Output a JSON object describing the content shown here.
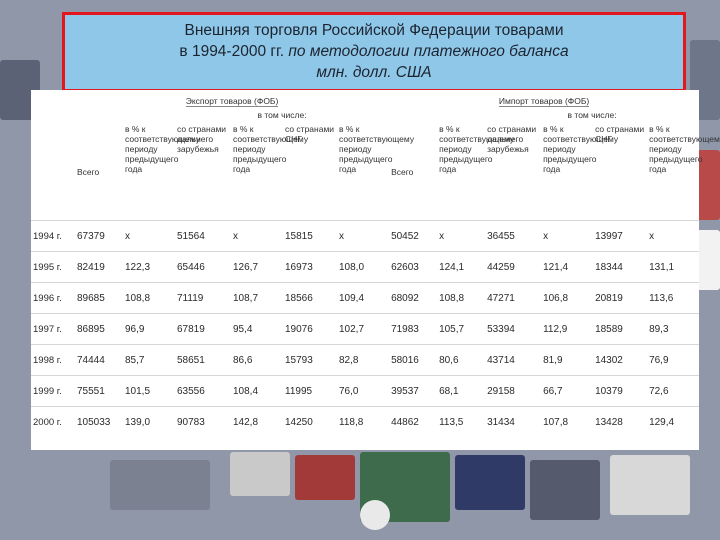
{
  "title": {
    "line1": "Внешняя торговля Российской Федерации товарами",
    "line2_plain": "в 1994-2000 гг. ",
    "line2_italic": "по методологии платежного баланса",
    "line3_italic": "млн. долл. США"
  },
  "table": {
    "export_header": "Экспорт товаров (ФОБ)",
    "import_header": "Импорт товаров (ФОБ)",
    "including_export": "в том числе:",
    "including_import": "в том числе:",
    "col_total": "Всего",
    "col_pct": "в % к соответствующему периоду предыдущего года",
    "col_far": "со странами дальнего зарубежья",
    "col_pct_far": "в % к соответствующему периоду предыдущего года",
    "col_cis": "со странами СНГ",
    "col_pct_cis": "в % к соответствующему периоду предыдущего года",
    "rows": [
      {
        "year": "1994 г.",
        "e_total": "67379",
        "e_pct": "x",
        "e_far": "51564",
        "e_pct_far": "x",
        "e_cis": "15815",
        "e_pct_cis": "x",
        "i_total": "50452",
        "i_pct": "x",
        "i_far": "36455",
        "i_pct_far": "x",
        "i_cis": "13997",
        "i_pct_cis": "x"
      },
      {
        "year": "1995 г.",
        "e_total": "82419",
        "e_pct": "122,3",
        "e_far": "65446",
        "e_pct_far": "126,7",
        "e_cis": "16973",
        "e_pct_cis": "108,0",
        "i_total": "62603",
        "i_pct": "124,1",
        "i_far": "44259",
        "i_pct_far": "121,4",
        "i_cis": "18344",
        "i_pct_cis": "131,1"
      },
      {
        "year": "1996 г.",
        "e_total": "89685",
        "e_pct": "108,8",
        "e_far": "71119",
        "e_pct_far": "108,7",
        "e_cis": "18566",
        "e_pct_cis": "109,4",
        "i_total": "68092",
        "i_pct": "108,8",
        "i_far": "47271",
        "i_pct_far": "106,8",
        "i_cis": "20819",
        "i_pct_cis": "113,6"
      },
      {
        "year": "1997 г.",
        "e_total": "86895",
        "e_pct": "96,9",
        "e_far": "67819",
        "e_pct_far": "95,4",
        "e_cis": "19076",
        "e_pct_cis": "102,7",
        "i_total": "71983",
        "i_pct": "105,7",
        "i_far": "53394",
        "i_pct_far": "112,9",
        "i_cis": "18589",
        "i_pct_cis": "89,3"
      },
      {
        "year": "1998 г.",
        "e_total": "74444",
        "e_pct": "85,7",
        "e_far": "58651",
        "e_pct_far": "86,6",
        "e_cis": "15793",
        "e_pct_cis": "82,8",
        "i_total": "58016",
        "i_pct": "80,6",
        "i_far": "43714",
        "i_pct_far": "81,9",
        "i_cis": "14302",
        "i_pct_cis": "76,9"
      },
      {
        "year": "1999 г.",
        "e_total": "75551",
        "e_pct": "101,5",
        "e_far": "63556",
        "e_pct_far": "108,4",
        "e_cis": "11995",
        "e_pct_cis": "76,0",
        "i_total": "39537",
        "i_pct": "68,1",
        "i_far": "29158",
        "i_pct_far": "66,7",
        "i_cis": "10379",
        "i_pct_cis": "72,6"
      },
      {
        "year": "2000 г.",
        "e_total": "105033",
        "e_pct": "139,0",
        "e_far": "90783",
        "e_pct_far": "142,8",
        "e_cis": "14250",
        "e_pct_cis": "118,8",
        "i_total": "44862",
        "i_pct": "113,5",
        "i_far": "31434",
        "i_pct_far": "107,8",
        "i_cis": "13428",
        "i_pct_cis": "129,4"
      }
    ]
  }
}
